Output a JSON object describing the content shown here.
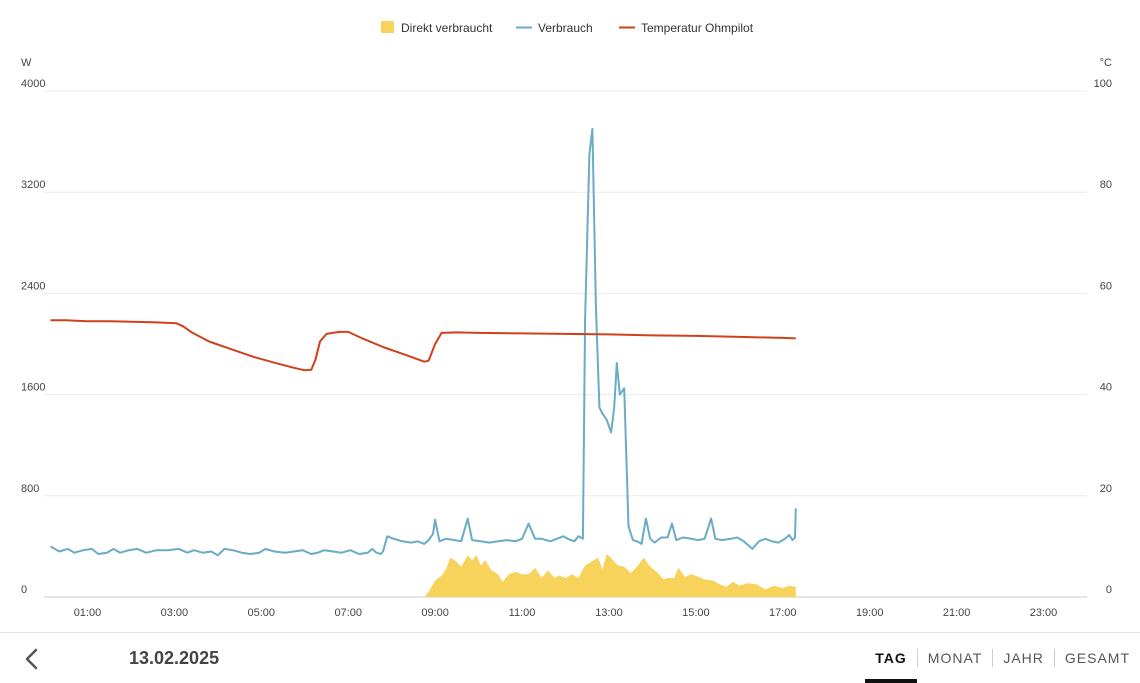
{
  "chart_data": {
    "type": "line",
    "legend": [
      {
        "name": "Direkt verbraucht",
        "color": "#f7d35c",
        "kind": "area"
      },
      {
        "name": "Verbrauch",
        "color": "#6aabc6",
        "kind": "line"
      },
      {
        "name": "Temperatur Ohmpilot",
        "color": "#d0401a",
        "kind": "line"
      }
    ],
    "legend_position": "top-center",
    "y_left": {
      "unit": "W",
      "min": 0,
      "max": 4000,
      "ticks": [
        0,
        800,
        1600,
        2400,
        3200,
        4000
      ]
    },
    "y_right": {
      "unit": "°C",
      "min": 0,
      "max": 100,
      "ticks": [
        0,
        20,
        40,
        60,
        80,
        100
      ]
    },
    "x_range": [
      0,
      24
    ],
    "x_ticks": [
      {
        "v": 1,
        "label": "01:00"
      },
      {
        "v": 3,
        "label": "03:00"
      },
      {
        "v": 5,
        "label": "05:00"
      },
      {
        "v": 7,
        "label": "07:00"
      },
      {
        "v": 9,
        "label": "09:00"
      },
      {
        "v": 11,
        "label": "11:00"
      },
      {
        "v": 13,
        "label": "13:00"
      },
      {
        "v": 15,
        "label": "15:00"
      },
      {
        "v": 17,
        "label": "17:00"
      },
      {
        "v": 19,
        "label": "19:00"
      },
      {
        "v": 21,
        "label": "21:00"
      },
      {
        "v": 23,
        "label": "23:00"
      }
    ],
    "grid": true,
    "series": [
      {
        "name": "Direkt verbraucht",
        "axis": "left",
        "type": "area",
        "color": "#f7d35c",
        "points": [
          [
            8.75,
            0
          ],
          [
            8.85,
            40
          ],
          [
            9.0,
            130
          ],
          [
            9.15,
            170
          ],
          [
            9.25,
            220
          ],
          [
            9.35,
            310
          ],
          [
            9.45,
            290
          ],
          [
            9.6,
            240
          ],
          [
            9.75,
            330
          ],
          [
            9.85,
            290
          ],
          [
            9.95,
            330
          ],
          [
            10.05,
            250
          ],
          [
            10.15,
            290
          ],
          [
            10.3,
            210
          ],
          [
            10.45,
            180
          ],
          [
            10.55,
            120
          ],
          [
            10.7,
            180
          ],
          [
            10.85,
            200
          ],
          [
            11.0,
            180
          ],
          [
            11.15,
            180
          ],
          [
            11.3,
            230
          ],
          [
            11.45,
            150
          ],
          [
            11.6,
            210
          ],
          [
            11.75,
            150
          ],
          [
            11.85,
            170
          ],
          [
            12.0,
            150
          ],
          [
            12.15,
            180
          ],
          [
            12.3,
            150
          ],
          [
            12.45,
            250
          ],
          [
            12.6,
            280
          ],
          [
            12.75,
            310
          ],
          [
            12.85,
            220
          ],
          [
            12.95,
            340
          ],
          [
            13.05,
            310
          ],
          [
            13.2,
            250
          ],
          [
            13.35,
            240
          ],
          [
            13.5,
            190
          ],
          [
            13.65,
            240
          ],
          [
            13.8,
            310
          ],
          [
            13.95,
            240
          ],
          [
            14.1,
            200
          ],
          [
            14.25,
            140
          ],
          [
            14.35,
            150
          ],
          [
            14.5,
            150
          ],
          [
            14.6,
            230
          ],
          [
            14.75,
            160
          ],
          [
            14.9,
            180
          ],
          [
            15.05,
            160
          ],
          [
            15.2,
            140
          ],
          [
            15.4,
            130
          ],
          [
            15.55,
            100
          ],
          [
            15.7,
            80
          ],
          [
            15.85,
            120
          ],
          [
            16.0,
            90
          ],
          [
            16.2,
            110
          ],
          [
            16.4,
            100
          ],
          [
            16.6,
            60
          ],
          [
            16.8,
            90
          ],
          [
            17.0,
            70
          ],
          [
            17.15,
            90
          ],
          [
            17.3,
            80
          ],
          [
            17.3,
            0
          ]
        ]
      },
      {
        "name": "Verbrauch",
        "axis": "left",
        "type": "line",
        "color": "#6aabc6",
        "points": [
          [
            0.15,
            400
          ],
          [
            0.35,
            360
          ],
          [
            0.55,
            380
          ],
          [
            0.7,
            350
          ],
          [
            0.9,
            370
          ],
          [
            1.1,
            380
          ],
          [
            1.25,
            340
          ],
          [
            1.45,
            350
          ],
          [
            1.6,
            380
          ],
          [
            1.75,
            350
          ],
          [
            1.95,
            370
          ],
          [
            2.15,
            380
          ],
          [
            2.35,
            350
          ],
          [
            2.6,
            370
          ],
          [
            2.85,
            370
          ],
          [
            3.1,
            380
          ],
          [
            3.3,
            350
          ],
          [
            3.45,
            370
          ],
          [
            3.65,
            350
          ],
          [
            3.85,
            360
          ],
          [
            4.0,
            330
          ],
          [
            4.15,
            380
          ],
          [
            4.35,
            370
          ],
          [
            4.55,
            350
          ],
          [
            4.75,
            340
          ],
          [
            4.95,
            350
          ],
          [
            5.1,
            380
          ],
          [
            5.3,
            360
          ],
          [
            5.55,
            350
          ],
          [
            5.75,
            360
          ],
          [
            5.95,
            370
          ],
          [
            6.15,
            340
          ],
          [
            6.3,
            350
          ],
          [
            6.45,
            370
          ],
          [
            6.65,
            360
          ],
          [
            6.85,
            350
          ],
          [
            7.05,
            370
          ],
          [
            7.25,
            340
          ],
          [
            7.45,
            350
          ],
          [
            7.55,
            380
          ],
          [
            7.65,
            350
          ],
          [
            7.75,
            340
          ],
          [
            7.8,
            360
          ],
          [
            7.9,
            480
          ],
          [
            8.05,
            460
          ],
          [
            8.25,
            440
          ],
          [
            8.45,
            430
          ],
          [
            8.6,
            440
          ],
          [
            8.75,
            420
          ],
          [
            8.85,
            450
          ],
          [
            8.95,
            500
          ],
          [
            9.0,
            610
          ],
          [
            9.1,
            440
          ],
          [
            9.25,
            460
          ],
          [
            9.45,
            450
          ],
          [
            9.6,
            440
          ],
          [
            9.75,
            620
          ],
          [
            9.85,
            450
          ],
          [
            10.05,
            440
          ],
          [
            10.25,
            430
          ],
          [
            10.45,
            440
          ],
          [
            10.65,
            450
          ],
          [
            10.85,
            440
          ],
          [
            11.0,
            460
          ],
          [
            11.15,
            580
          ],
          [
            11.3,
            460
          ],
          [
            11.45,
            460
          ],
          [
            11.65,
            440
          ],
          [
            11.8,
            460
          ],
          [
            11.95,
            480
          ],
          [
            12.05,
            460
          ],
          [
            12.2,
            440
          ],
          [
            12.3,
            480
          ],
          [
            12.4,
            460
          ],
          [
            12.45,
            2200
          ],
          [
            12.55,
            3500
          ],
          [
            12.62,
            3700
          ],
          [
            12.7,
            2300
          ],
          [
            12.78,
            1500
          ],
          [
            12.85,
            1450
          ],
          [
            12.95,
            1400
          ],
          [
            13.05,
            1300
          ],
          [
            13.12,
            1500
          ],
          [
            13.18,
            1850
          ],
          [
            13.25,
            1600
          ],
          [
            13.35,
            1650
          ],
          [
            13.45,
            560
          ],
          [
            13.55,
            450
          ],
          [
            13.65,
            440
          ],
          [
            13.75,
            420
          ],
          [
            13.85,
            620
          ],
          [
            13.95,
            460
          ],
          [
            14.05,
            430
          ],
          [
            14.2,
            470
          ],
          [
            14.35,
            470
          ],
          [
            14.45,
            580
          ],
          [
            14.55,
            450
          ],
          [
            14.7,
            470
          ],
          [
            14.9,
            460
          ],
          [
            15.05,
            450
          ],
          [
            15.2,
            460
          ],
          [
            15.35,
            620
          ],
          [
            15.45,
            460
          ],
          [
            15.6,
            450
          ],
          [
            15.8,
            460
          ],
          [
            15.95,
            470
          ],
          [
            16.1,
            440
          ],
          [
            16.3,
            380
          ],
          [
            16.45,
            440
          ],
          [
            16.6,
            460
          ],
          [
            16.75,
            440
          ],
          [
            16.9,
            430
          ],
          [
            17.05,
            460
          ],
          [
            17.15,
            490
          ],
          [
            17.22,
            450
          ],
          [
            17.28,
            470
          ],
          [
            17.3,
            700
          ]
        ]
      },
      {
        "name": "Temperatur Ohmpilot",
        "axis": "right",
        "type": "line",
        "color": "#d0401a",
        "points": [
          [
            0.15,
            54.7
          ],
          [
            0.5,
            54.7
          ],
          [
            1.0,
            54.5
          ],
          [
            1.5,
            54.5
          ],
          [
            2.0,
            54.4
          ],
          [
            2.5,
            54.3
          ],
          [
            3.05,
            54.1
          ],
          [
            3.2,
            53.5
          ],
          [
            3.4,
            52.3
          ],
          [
            3.8,
            50.5
          ],
          [
            4.3,
            49.0
          ],
          [
            4.8,
            47.5
          ],
          [
            5.3,
            46.3
          ],
          [
            5.75,
            45.3
          ],
          [
            6.0,
            44.8
          ],
          [
            6.15,
            44.9
          ],
          [
            6.25,
            47.0
          ],
          [
            6.35,
            50.5
          ],
          [
            6.5,
            52.0
          ],
          [
            6.8,
            52.4
          ],
          [
            7.0,
            52.4
          ],
          [
            7.3,
            51.2
          ],
          [
            7.8,
            49.4
          ],
          [
            8.3,
            47.9
          ],
          [
            8.75,
            46.5
          ],
          [
            8.85,
            46.7
          ],
          [
            9.0,
            50.0
          ],
          [
            9.15,
            52.2
          ],
          [
            9.5,
            52.3
          ],
          [
            10.0,
            52.2
          ],
          [
            11.0,
            52.1
          ],
          [
            12.0,
            52.0
          ],
          [
            13.0,
            51.9
          ],
          [
            14.0,
            51.7
          ],
          [
            15.0,
            51.6
          ],
          [
            16.0,
            51.4
          ],
          [
            17.0,
            51.2
          ],
          [
            17.3,
            51.1
          ]
        ]
      }
    ]
  },
  "footer": {
    "date": "13.02.2025",
    "tabs": [
      {
        "label": "TAG",
        "active": true
      },
      {
        "label": "MONAT",
        "active": false
      },
      {
        "label": "JAHR",
        "active": false
      },
      {
        "label": "GESAMT",
        "active": false
      }
    ]
  }
}
